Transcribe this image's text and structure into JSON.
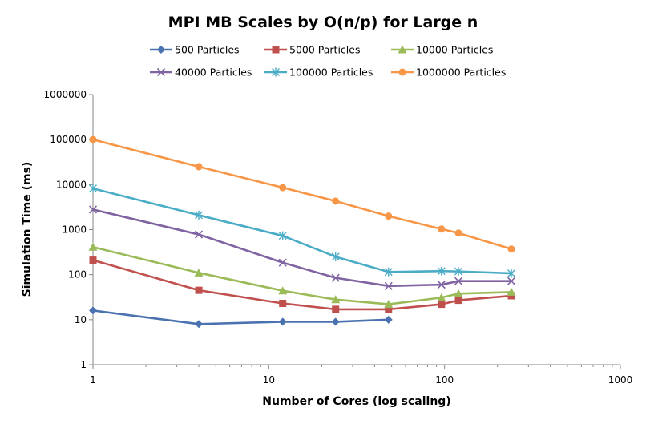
{
  "chart_data": {
    "type": "line",
    "title": "MPI MB Scales by O(n/p) for Large n",
    "xlabel": "Number of Cores (log scaling)",
    "ylabel": "Simulation Time (ms)",
    "xscale": "log",
    "yscale": "log",
    "xlim": [
      1,
      1000
    ],
    "ylim": [
      1,
      1000000
    ],
    "xticks": [
      "1",
      "10",
      "100",
      "1000"
    ],
    "yticks": [
      "1",
      "10",
      "100",
      "1000",
      "10000",
      "100000",
      "1000000"
    ],
    "grid": false,
    "legend_position": "top",
    "series": [
      {
        "name": "500 Particles",
        "color": "#4A72B0",
        "marker": "diamond",
        "points": [
          [
            1,
            16
          ],
          [
            4,
            8
          ],
          [
            12,
            9
          ],
          [
            24,
            9
          ],
          [
            48,
            10
          ]
        ]
      },
      {
        "name": "5000 Particles",
        "color": "#C0504D",
        "marker": "square",
        "points": [
          [
            1,
            210
          ],
          [
            4,
            45
          ],
          [
            12,
            23
          ],
          [
            24,
            17
          ],
          [
            48,
            17
          ],
          [
            96,
            22
          ],
          [
            120,
            27
          ],
          [
            240,
            34
          ]
        ]
      },
      {
        "name": "10000 Particles",
        "color": "#9BBB59",
        "marker": "triangle",
        "points": [
          [
            1,
            410
          ],
          [
            4,
            110
          ],
          [
            12,
            44
          ],
          [
            24,
            28
          ],
          [
            48,
            22
          ],
          [
            96,
            31
          ],
          [
            120,
            38
          ],
          [
            240,
            41
          ]
        ]
      },
      {
        "name": "40000 Particles",
        "color": "#8064A2",
        "marker": "x",
        "points": [
          [
            1,
            2800
          ],
          [
            4,
            780
          ],
          [
            12,
            185
          ],
          [
            24,
            85
          ],
          [
            48,
            56
          ],
          [
            96,
            60
          ],
          [
            120,
            72
          ],
          [
            240,
            72
          ]
        ]
      },
      {
        "name": "100000 Particles",
        "color": "#4BACC6",
        "marker": "star",
        "points": [
          [
            1,
            8200
          ],
          [
            4,
            2100
          ],
          [
            12,
            730
          ],
          [
            24,
            250
          ],
          [
            48,
            115
          ],
          [
            96,
            120
          ],
          [
            120,
            118
          ],
          [
            240,
            107
          ]
        ]
      },
      {
        "name": "1000000 Particles",
        "color": "#F79646",
        "marker": "circle",
        "points": [
          [
            1,
            100000
          ],
          [
            4,
            25000
          ],
          [
            12,
            8600
          ],
          [
            24,
            4300
          ],
          [
            48,
            2000
          ],
          [
            96,
            1030
          ],
          [
            120,
            840
          ],
          [
            240,
            370
          ]
        ]
      }
    ]
  }
}
